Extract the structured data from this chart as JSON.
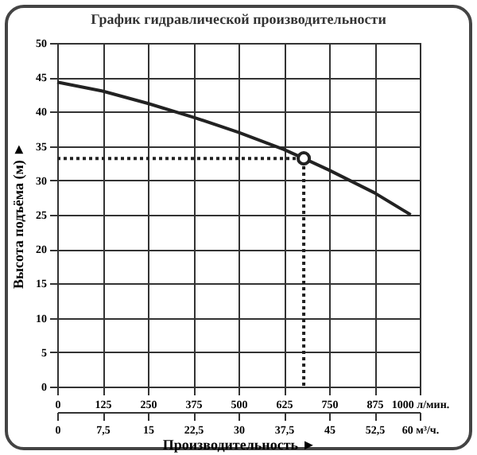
{
  "chart_data": {
    "type": "line",
    "title": "График гидравлической производительности",
    "xlabel": "Производительность ►",
    "ylabel": "Высота подъёма (м) ►",
    "xlim": [
      0,
      1000
    ],
    "xticks": [
      0,
      125,
      250,
      375,
      500,
      625,
      750,
      875,
      {
        "value": 1000,
        "label": "1000 л/мин."
      }
    ],
    "x2lim": [
      0,
      60
    ],
    "x2ticks": [
      0,
      {
        "value": 7.5,
        "label": "7,5"
      },
      15,
      {
        "value": 22.5,
        "label": "22,5"
      },
      30,
      {
        "value": 37.5,
        "label": "37,5"
      },
      45,
      {
        "value": 52.5,
        "label": "52,5"
      },
      {
        "value": 60,
        "label": "60 м³/ч."
      }
    ],
    "ylim": [
      0,
      50
    ],
    "yticks": [
      0,
      5,
      10,
      15,
      20,
      25,
      30,
      35,
      40,
      45,
      50
    ],
    "grid": true,
    "series": [
      {
        "color": "#222222",
        "line_style": "solid",
        "marker": "none",
        "x": [
          0,
          125,
          250,
          375,
          500,
          625,
          680,
          750,
          875,
          975
        ],
        "values": [
          44.3,
          43,
          41.2,
          39.2,
          37,
          34.5,
          33.2,
          31.5,
          28.2,
          25
        ]
      },
      {
        "color": "#222222",
        "line_style": "dotted",
        "marker": "none",
        "x": [
          0,
          680,
          680
        ],
        "values": [
          33.2,
          33.2,
          0
        ]
      },
      {
        "type": "scatter",
        "color": "#222222",
        "marker": "circle",
        "x": [
          680
        ],
        "values": [
          33.2
        ]
      }
    ]
  }
}
